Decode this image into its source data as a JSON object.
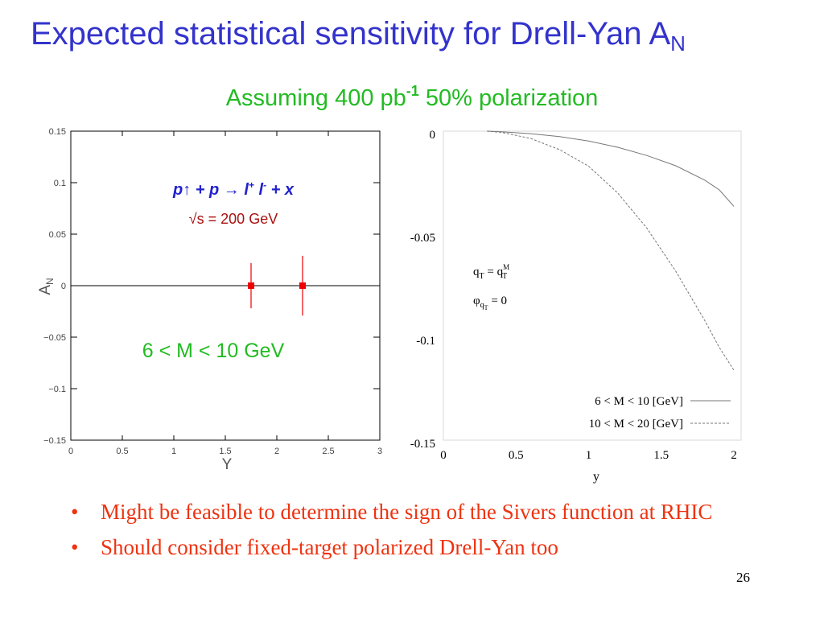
{
  "slide": {
    "title_main": "Expected statistical sensitivity for Drell-Yan A",
    "title_sub": "N",
    "subtitle_pre": "Assuming 400 pb",
    "subtitle_sup": "-1",
    "subtitle_post": " 50% polarization",
    "page_number": "26",
    "bullets": [
      "Might be feasible to determine the sign of the Sivers function at RHIC",
      "Should consider fixed-target polarized Drell-Yan too"
    ],
    "bullet_glyph": "•"
  },
  "colors": {
    "title": "#3333cc",
    "subtitle": "#22bb22",
    "bullets": "#ee3311",
    "reaction": "#2222cc",
    "energy": "#aa1111",
    "marker": "#ee0000",
    "mass_label": "#22bb22"
  },
  "chart_data": [
    {
      "type": "scatter",
      "xlabel": "Y",
      "ylabel": "A",
      "ylabel_sub": "N",
      "xlim": [
        0,
        3
      ],
      "ylim": [
        -0.15,
        0.15
      ],
      "x_ticks": [
        0,
        0.5,
        1,
        1.5,
        2,
        2.5,
        3
      ],
      "x_tick_labels": [
        "0",
        "0.5",
        "1",
        "1.5",
        "2",
        "2.5",
        "3"
      ],
      "y_ticks": [
        -0.15,
        -0.1,
        -0.05,
        0,
        0.05,
        0.1,
        0.15
      ],
      "y_tick_labels": [
        "−0.15",
        "−0.1",
        "−0.05",
        "0",
        "0.05",
        "0.1",
        "0.15"
      ],
      "zero_line": true,
      "grid": false,
      "points": [
        {
          "x": 1.75,
          "y": 0,
          "err": 0.022
        },
        {
          "x": 2.25,
          "y": 0,
          "err": 0.029
        }
      ],
      "annotations": {
        "reaction_p1": "p",
        "reaction_arrow": "↑",
        "reaction_p2": " + p → l",
        "reaction_plus": "+",
        "reaction_l2": " l",
        "reaction_minus": "-",
        "reaction_end": " + x",
        "energy": "√s = 200 GeV",
        "mass_range": "6 < M < 10 GeV"
      }
    },
    {
      "type": "line",
      "xlabel": "y",
      "xlim": [
        0,
        2.05
      ],
      "ylim": [
        -0.15,
        0
      ],
      "x_ticks": [
        0,
        0.5,
        1,
        1.5,
        2
      ],
      "x_tick_labels": [
        "0",
        "0.5",
        "1",
        "1.5",
        "2"
      ],
      "y_ticks": [
        0,
        -0.05,
        -0.1,
        -0.15
      ],
      "y_tick_labels": [
        "0",
        "-0.05",
        "-0.1",
        "-0.15"
      ],
      "grid": false,
      "annotations": {
        "qt_eq_main": "q",
        "qt_eq_sub": "T",
        "qt_eq_mid": " = q",
        "qt_eq_sup": "M",
        "qt_eq_sub2": "T",
        "phi_main": "φ",
        "phi_sub_q": "q",
        "phi_sub_t": "T",
        "phi_rest": " = 0"
      },
      "series": [
        {
          "name": "6 < M < 10 [GeV]",
          "style": "solid",
          "x": [
            0.3,
            0.4,
            0.6,
            0.8,
            1.0,
            1.2,
            1.4,
            1.6,
            1.8,
            1.9,
            2.0
          ],
          "y": [
            0,
            -0.0003,
            -0.0012,
            -0.0026,
            -0.0048,
            -0.0078,
            -0.0118,
            -0.0168,
            -0.0238,
            -0.0285,
            -0.0365
          ]
        },
        {
          "name": "10 < M < 20 [GeV]",
          "style": "dashed",
          "x": [
            0.3,
            0.4,
            0.6,
            0.8,
            1.0,
            1.2,
            1.4,
            1.6,
            1.8,
            1.9,
            2.0
          ],
          "y": [
            0,
            -0.0006,
            -0.0035,
            -0.009,
            -0.017,
            -0.03,
            -0.047,
            -0.068,
            -0.092,
            -0.105,
            -0.116
          ]
        }
      ]
    }
  ]
}
